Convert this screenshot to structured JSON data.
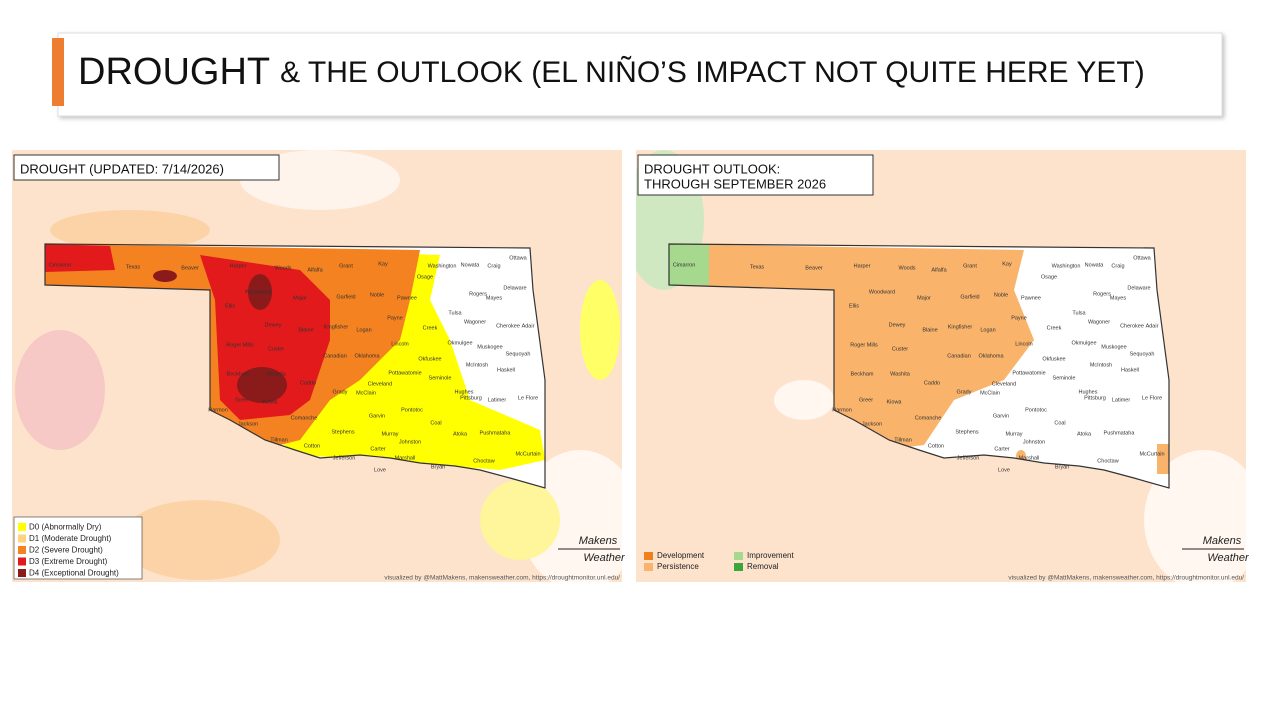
{
  "header": {
    "title_main": "DROUGHT",
    "title_rest": "& THE OUTLOOK (EL NIÑO’S IMPACT NOT QUITE HERE YET)"
  },
  "maps": [
    {
      "title_lines": [
        "DROUGHT (UPDATED: 7/14/2026)"
      ],
      "legend": [
        {
          "label": "D0 (Abnormally Dry)",
          "color": "#ffff00"
        },
        {
          "label": "D1 (Moderate Drought)",
          "color": "#fcd37f"
        },
        {
          "label": "D2 (Severe Drought)",
          "color": "#f58220"
        },
        {
          "label": "D3 (Extreme Drought)",
          "color": "#e31a1c"
        },
        {
          "label": "D4 (Exceptional Drought)",
          "color": "#8b1a1a"
        }
      ],
      "credit": "visualized by @MattMakens, makensweather.com, https://droughtmonitor.unl.edu/",
      "logo": [
        "Makens",
        "Weather"
      ]
    },
    {
      "title_lines": [
        "DROUGHT OUTLOOK:",
        "THROUGH SEPTEMBER 2026"
      ],
      "legend": [
        {
          "label": "Development",
          "color": "#f07f1d"
        },
        {
          "label": "Persistence",
          "color": "#f9b36b"
        },
        {
          "label": "Improvement",
          "color": "#a6d88d"
        },
        {
          "label": "Removal",
          "color": "#3aa63a"
        }
      ],
      "credit": "visualized by @MattMakens, makensweather.com, https://droughtmonitor.unl.edu/",
      "logo": [
        "Makens",
        "Weather"
      ]
    }
  ],
  "counties": [
    "Cimarron",
    "Texas",
    "Beaver",
    "Harper",
    "Woods",
    "Alfalfa",
    "Grant",
    "Kay",
    "Osage",
    "Washington",
    "Nowata",
    "Craig",
    "Ottawa",
    "Delaware",
    "Mayes",
    "Rogers",
    "Tulsa",
    "Pawnee",
    "Noble",
    "Garfield",
    "Major",
    "Woodward",
    "Ellis",
    "Dewey",
    "Blaine",
    "Kingfisher",
    "Logan",
    "Payne",
    "Creek",
    "Wagoner",
    "Cherokee",
    "Adair",
    "Roger Mills",
    "Custer",
    "Canadian",
    "Oklahoma",
    "Lincoln",
    "Okmulgee",
    "Muskogee",
    "Sequoyah",
    "Okfuskee",
    "McIntosh",
    "Haskell",
    "Beckham",
    "Washita",
    "Caddo",
    "Grady",
    "McClain",
    "Cleveland",
    "Pottawatomie",
    "Seminole",
    "Hughes",
    "Pittsburg",
    "Latimer",
    "Le Flore",
    "Harmon",
    "Greer",
    "Kiowa",
    "Jackson",
    "Tillman",
    "Comanche",
    "Cotton",
    "Stephens",
    "Garvin",
    "Murray",
    "Pontotoc",
    "Coal",
    "Atoka",
    "Pushmataha",
    "Johnston",
    "Carter",
    "Jefferson",
    "Love",
    "Marshall",
    "Bryan",
    "Choctaw",
    "McCurtain"
  ]
}
